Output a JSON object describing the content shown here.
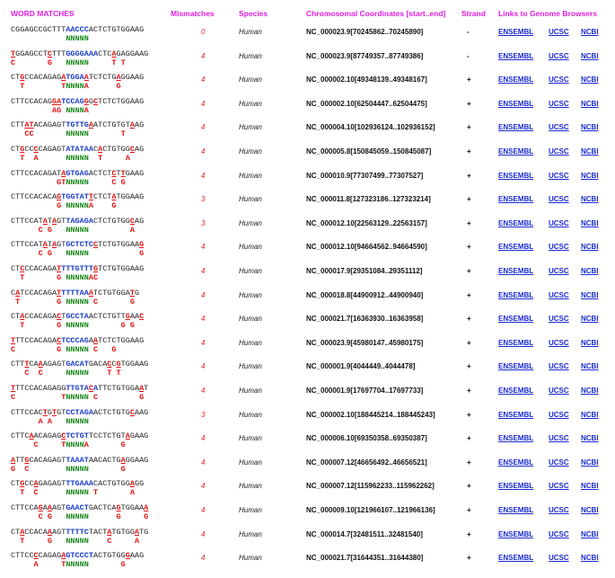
{
  "headers": {
    "word_matches": "WORD MATCHES",
    "mismatches": "Mismatches",
    "species": "Species",
    "coords": "Chromosomal Coordinates [start..end]",
    "strand": "Strand",
    "links": "Links to Genome Browsers"
  },
  "link_labels": {
    "ensembl": "ENSEMBL",
    "ucsc": "UCSC",
    "ncbi": "NCBI"
  },
  "rows": [
    {
      "seq": "CGGAGCCGCTTTAACCCACTCTGTGGAAG",
      "mm": [],
      "pam": [
        12,
        16
      ],
      "bottom": "            NNNNN",
      "mismatches": "0",
      "species": "Human",
      "coords": "NC_000023.9[70245862..70245890]",
      "strand": "-"
    },
    {
      "seq": "TGGAGCCTCTTTGGGGAAACTCAGAGGAAG",
      "mm": [
        0,
        8,
        22
      ],
      "pam": [
        12,
        18
      ],
      "bottom": "C       G   NNNNN     T T",
      "mismatches": "4",
      "species": "Human",
      "coords": "NC_000023.9[87749357..87749386]",
      "strand": "-"
    },
    {
      "seq": "CTGCCACAGAGATGGAATCTCTGAGGAAG",
      "mm": [
        2,
        11,
        16,
        23
      ],
      "pam": [
        11,
        16
      ],
      "bottom": "  T        TNNNNA      G",
      "mismatches": "4",
      "species": "Human",
      "coords": "NC_000002.10[49348139..49348167]",
      "strand": "+"
    },
    {
      "seq": "CTTCCACAGGATCCAGGGCTCTCTGGAAG",
      "mm": [
        9,
        10,
        16,
        18
      ],
      "pam": [
        11,
        16
      ],
      "bottom": "         AG NNNNA",
      "mismatches": "4",
      "species": "Human",
      "coords": "NC_000002.10[62504447..62504475]",
      "strand": "+"
    },
    {
      "seq": "CTTATACAGAGTTGTTGAATCTGTGTAAG",
      "mm": [
        3,
        4,
        17,
        26
      ],
      "pam": [
        12,
        17
      ],
      "bottom": "   CC       NNNNN       T",
      "mismatches": "4",
      "species": "Human",
      "coords": "NC_000004.10[102936124..102936152]",
      "strand": "+"
    },
    {
      "seq": "CTGCCCCAGAGTATATAACACTGTGGCAG",
      "mm": [
        2,
        5,
        19,
        26
      ],
      "pam": [
        12,
        17
      ],
      "bottom": "  T  A      NNNNN  T     A",
      "mismatches": "4",
      "species": "Human",
      "coords": "NC_000005.8[150845059..150845087]",
      "strand": "+"
    },
    {
      "seq": "CTTCCACAGATAGTGAGACTCTCTTGAAG",
      "mm": [
        11,
        22,
        24
      ],
      "pam": [
        12,
        16
      ],
      "bottom": "          GTNNNNN     C G",
      "mismatches": "4",
      "species": "Human",
      "coords": "NC_000010.9[77307499..77307527]",
      "strand": "+"
    },
    {
      "seq": "CTTCCACACAGTGGTATTCTCTATGGAAG",
      "mm": [
        10,
        17,
        22
      ],
      "pam": [
        11,
        16
      ],
      "bottom": "          G NNNNNA    G",
      "mismatches": "3",
      "species": "Human",
      "coords": "NC_000011.8[127323186..127323214]",
      "strand": "+"
    },
    {
      "seq": "CTTCCATATAGTTAGAGACTCTGTGGCAG",
      "mm": [
        7,
        9,
        26
      ],
      "pam": [
        12,
        17
      ],
      "bottom": "      C G   NNNNN         A",
      "mismatches": "3",
      "species": "Human",
      "coords": "NC_000012.10[22563129..22563157]",
      "strand": "+"
    },
    {
      "seq": "CTTCCATATAGTGCTCTCCTCTGTGGAAG",
      "mm": [
        7,
        9,
        18,
        28
      ],
      "pam": [
        12,
        17
      ],
      "bottom": "      C G   NNNNN           G",
      "mismatches": "4",
      "species": "Human",
      "coords": "NC_000012.10[94664562..94664590]",
      "strand": "+"
    },
    {
      "seq": "CTCCCACAGATTTTGTTTGTCTGTGGAAG",
      "mm": [
        2,
        10,
        18
      ],
      "pam": [
        11,
        18
      ],
      "bottom": "  T       G NNNNNAC",
      "mismatches": "4",
      "species": "Human",
      "coords": "NC_000017.9[29351084..29351112]",
      "strand": "+"
    },
    {
      "seq": "CATCCACAGATTTTTAAATCTGTGGATG",
      "mm": [
        1,
        10,
        17,
        26
      ],
      "pam": [
        11,
        16
      ],
      "bottom": " T        G NNNNN C       G",
      "mismatches": "4",
      "species": "Human",
      "coords": "NC_000018.8[44900912..44900940]",
      "strand": "+"
    },
    {
      "seq": "CTACCACAGACTGCCTAACTCTGTTGAAC",
      "mm": [
        2,
        10,
        25,
        28
      ],
      "pam": [
        12,
        16
      ],
      "bottom": "  T       G NNNNN       G G",
      "mismatches": "4",
      "species": "Human",
      "coords": "NC_000021.7[16363930..16363958]",
      "strand": "+"
    },
    {
      "seq": "TTTCCACAGACTCCCAGAATCTCTGGAAG",
      "mm": [
        0,
        10,
        18
      ],
      "pam": [
        11,
        16
      ],
      "bottom": "C         G NNNNN C   G",
      "mismatches": "4",
      "species": "Human",
      "coords": "NC_000023.9[45980147..45980175]",
      "strand": "+"
    },
    {
      "seq": "CTTTCAAAGAGTGACATGACACCGTGGAAG",
      "mm": [
        3,
        6,
        21,
        23
      ],
      "pam": [
        12,
        16
      ],
      "bottom": "   C  C     NNNNN    T T",
      "mismatches": "4",
      "species": "Human",
      "coords": "NC_000001.9[4044449..4044478]",
      "strand": "+"
    },
    {
      "seq": "TTTCCACAGAGGTTGTACATTCTGTGGAAT",
      "mm": [
        0,
        17,
        28
      ],
      "pam": [
        12,
        18
      ],
      "bottom": "C          TNNNNN C         G",
      "mismatches": "4",
      "species": "Human",
      "coords": "NC_000001.9[17697704..17697733]",
      "strand": "+"
    },
    {
      "seq": "CTTCCACTGTGTCCTAGAACTCTGTGCAAG",
      "mm": [
        7,
        9,
        26
      ],
      "pam": [
        12,
        17
      ],
      "bottom": "      A A   NNNNN",
      "mismatches": "3",
      "species": "Human",
      "coords": "NC_000002.10[188445214..188445243]",
      "strand": "+"
    },
    {
      "seq": "CTTCAACAGAGCTCTGTTCCTCTGTAGAAG",
      "mm": [
        4,
        11,
        25
      ],
      "pam": [
        11,
        16
      ],
      "bottom": "     C     TNNNNA       G",
      "mismatches": "4",
      "species": "Human",
      "coords": "NC_000006.10[69350358..69350387]",
      "strand": "+"
    },
    {
      "seq": "ATTGCACAGAGTTAAATAACACTGAGGAAG",
      "mm": [
        0,
        3,
        24
      ],
      "pam": [
        12,
        16
      ],
      "bottom": "G  C        NNNNN       G",
      "mismatches": "4",
      "species": "Human",
      "coords": "NC_000007.12[46656492..46656521]",
      "strand": "+"
    },
    {
      "seq": "CTGCCAGAGAGTTTGAAACACTGTGGAGG",
      "mm": [
        2,
        5,
        26
      ],
      "pam": [
        12,
        17
      ],
      "bottom": "  T  C      NNNNN T       A",
      "mismatches": "4",
      "species": "Human",
      "coords": "NC_000007.12[115962233..115962262]",
      "strand": "+"
    },
    {
      "seq": "CTTCCAGAAAGTGAACTGACTCAGTGGAAA",
      "mm": [
        6,
        8,
        23,
        29
      ],
      "pam": [
        12,
        16
      ],
      "bottom": "      C G   NNNNN      G     G",
      "mismatches": "4",
      "species": "Human",
      "coords": "NC_000009.10[121966107..121966136]",
      "strand": "+"
    },
    {
      "seq": "CTACCACAAAGTTTTTCTACTATGTGGATG",
      "mm": [
        2,
        8,
        21,
        27
      ],
      "pam": [
        12,
        16
      ],
      "bottom": "  T     G   NNNNN    C     A",
      "mismatches": "4",
      "species": "Human",
      "coords": "NC_000014.7[32481511..32481540]",
      "strand": "+"
    },
    {
      "seq": "CTTCCCCAGAGAGTCCCTACTGTGGGAAG",
      "mm": [
        5,
        11,
        25
      ],
      "pam": [
        12,
        17
      ],
      "bottom": "     A     TNNNNN       G",
      "mismatches": "4",
      "species": "Human",
      "coords": "NC_000021.7[31644351..31644380]",
      "strand": "+"
    }
  ],
  "colors": {
    "header": "#e020e0",
    "mismatch": "#dd1111",
    "pam": "#1a3cc8",
    "n": "#1a8a1a",
    "link": "#1a2ad0"
  }
}
